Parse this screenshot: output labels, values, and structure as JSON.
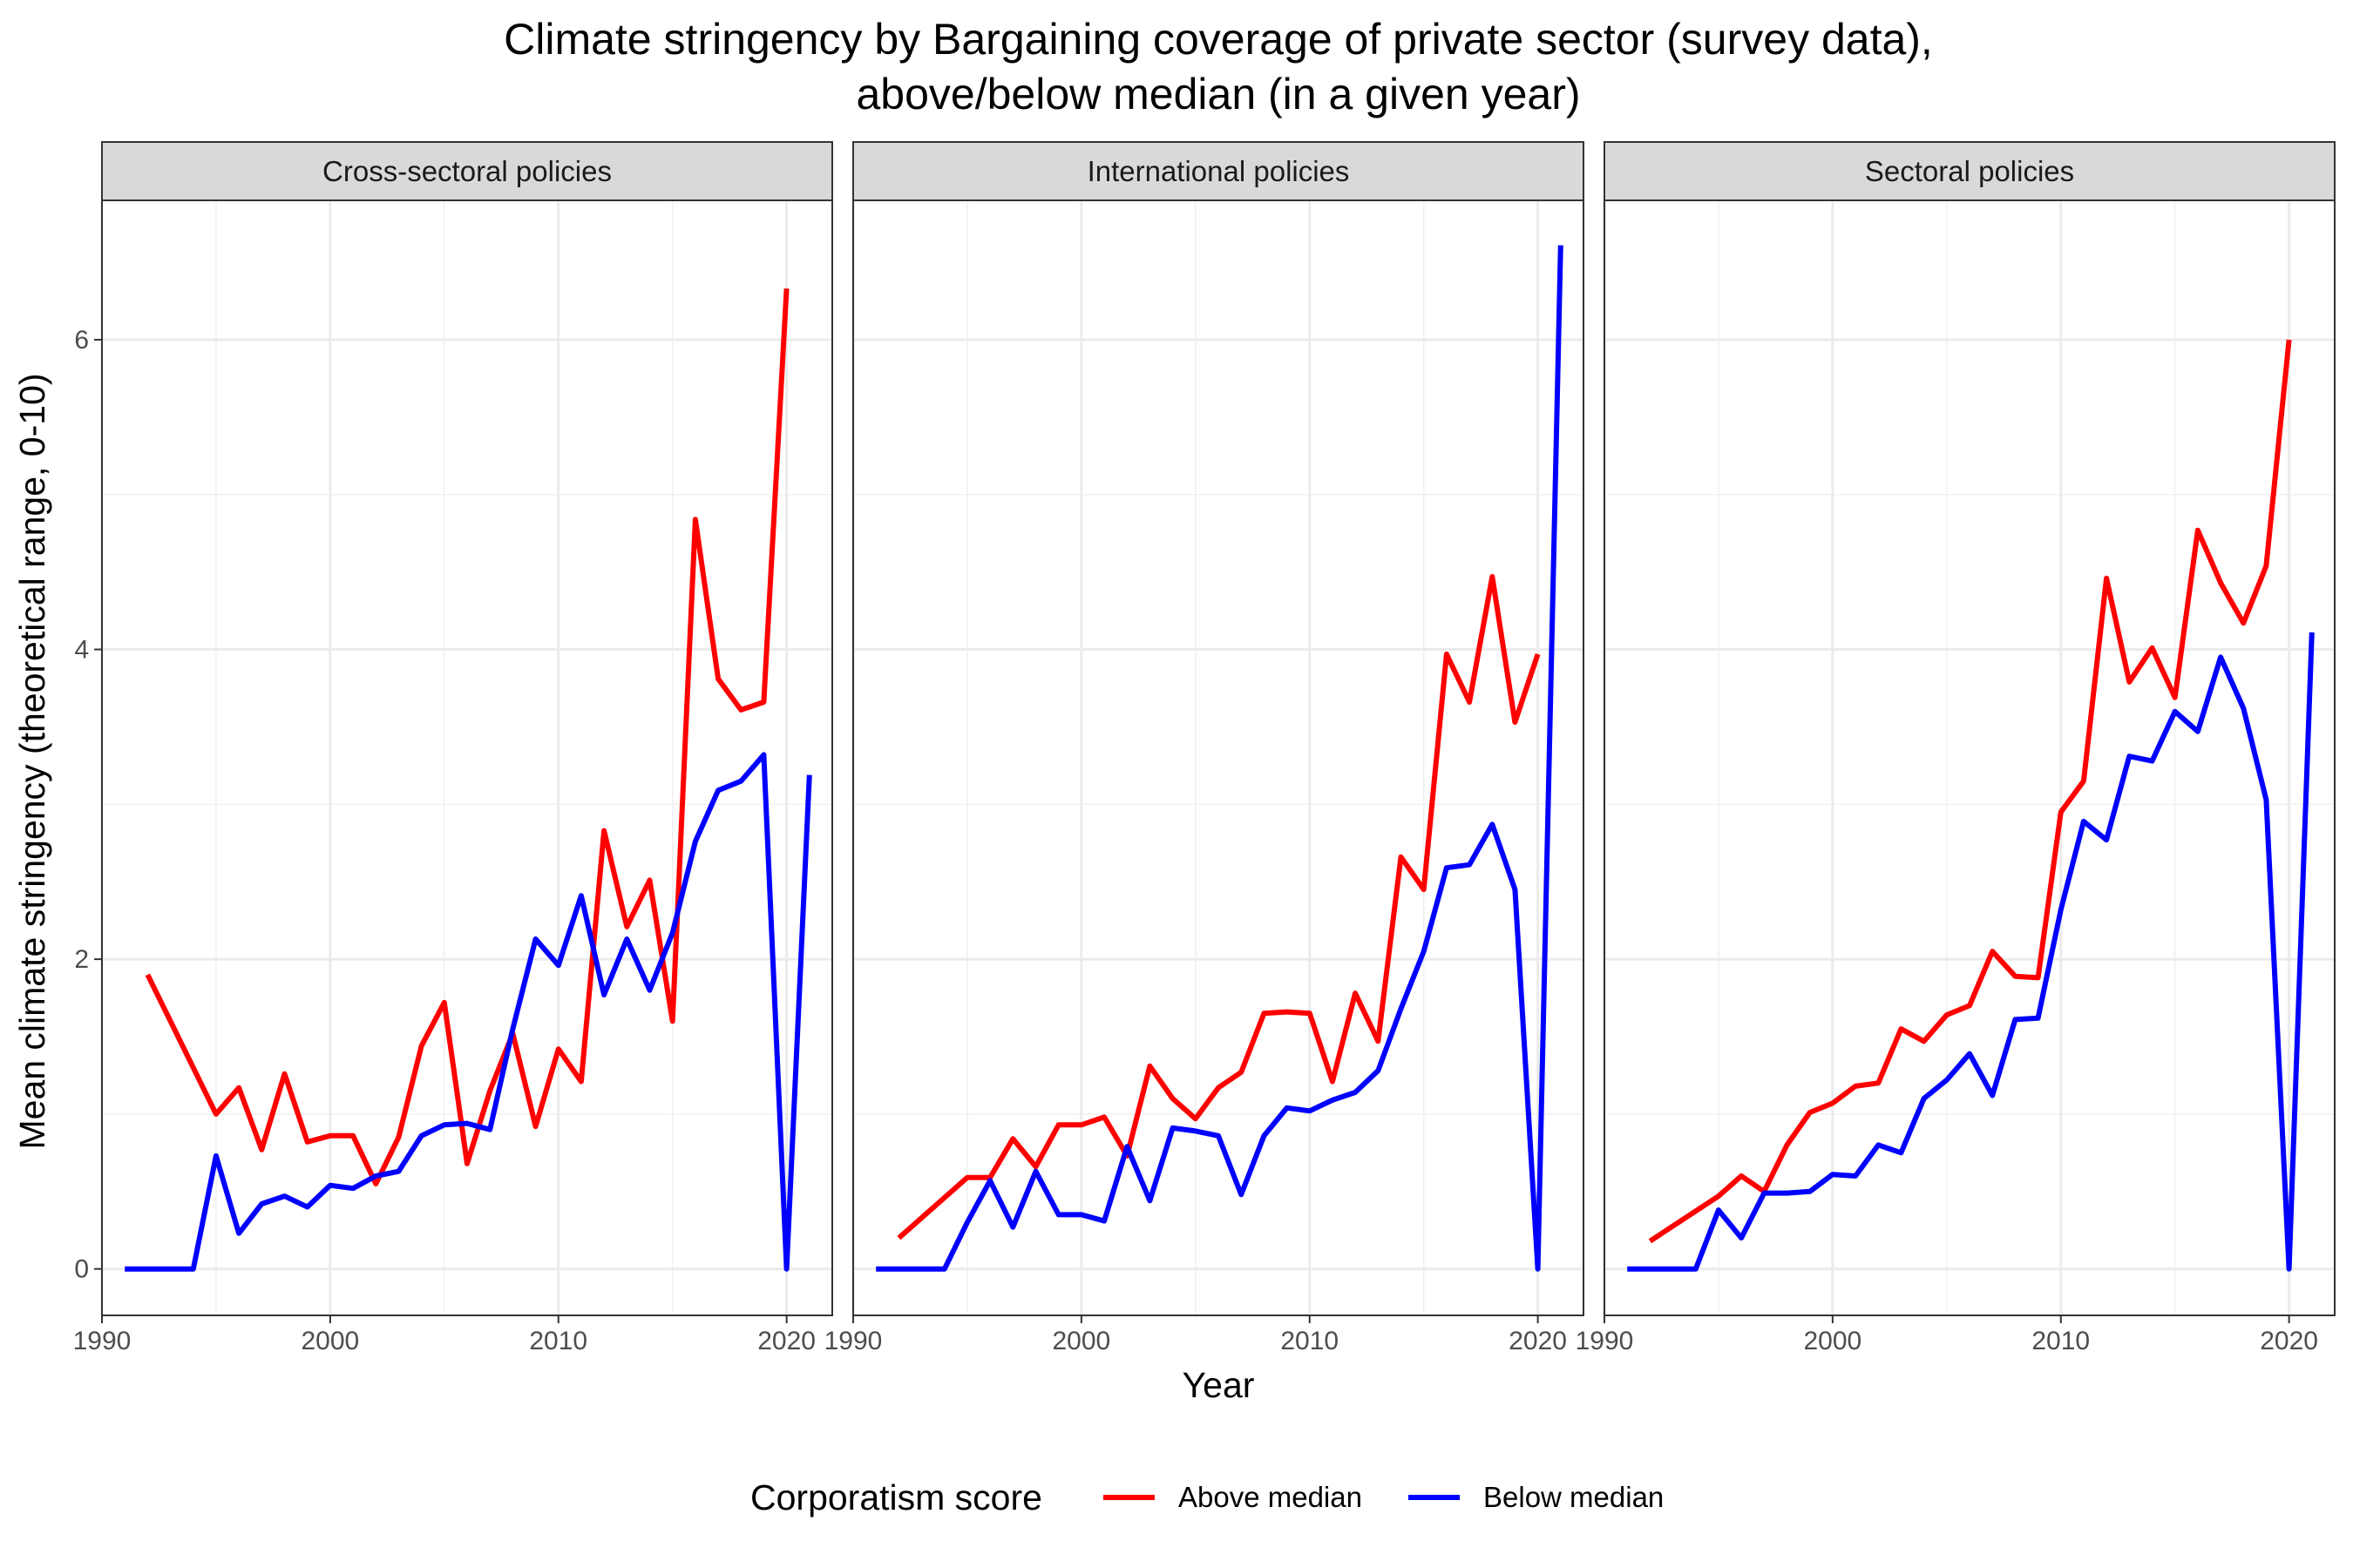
{
  "chart_data": {
    "type": "line",
    "title": "Climate stringency by Bargaining coverage of private sector (survey data),",
    "subtitle": "above/below median (in a given year)",
    "xlabel": "Year",
    "ylabel": "Mean climate stringency (theoretical range, 0-10)",
    "xlim": [
      1990,
      2022
    ],
    "ylim": [
      -0.3,
      6.9
    ],
    "x_ticks": [
      1990,
      2000,
      2010,
      2020
    ],
    "y_ticks": [
      0,
      2,
      4,
      6
    ],
    "grid": true,
    "legend": {
      "title": "Corporatism score",
      "position": "bottom",
      "entries": [
        "Above median",
        "Below median"
      ]
    },
    "colors": {
      "Above median": "#ff0000",
      "Below median": "#0000ff"
    },
    "panels": [
      {
        "name": "Cross-sectoral policies",
        "series": [
          {
            "name": "Above median",
            "x": [
              1992,
              1995,
              1996,
              1997,
              1998,
              1999,
              2000,
              2001,
              2002,
              2003,
              2004,
              2005,
              2006,
              2007,
              2008,
              2009,
              2010,
              2011,
              2012,
              2013,
              2014,
              2015,
              2016,
              2017,
              2018,
              2019,
              2020
            ],
            "values": [
              1.9,
              1.0,
              1.17,
              0.77,
              1.26,
              0.82,
              0.86,
              0.86,
              0.55,
              0.85,
              1.44,
              1.72,
              0.68,
              1.15,
              1.52,
              0.92,
              1.42,
              1.21,
              2.83,
              2.21,
              2.51,
              1.6,
              4.84,
              3.81,
              3.61,
              3.66,
              6.33
            ]
          },
          {
            "name": "Below median",
            "x": [
              1991,
              1992,
              1993,
              1994,
              1995,
              1996,
              1997,
              1998,
              1999,
              2000,
              2001,
              2002,
              2003,
              2004,
              2005,
              2006,
              2007,
              2008,
              2009,
              2010,
              2011,
              2012,
              2013,
              2014,
              2015,
              2016,
              2017,
              2018,
              2019,
              2020,
              2021
            ],
            "values": [
              0,
              0,
              0,
              0,
              0.73,
              0.23,
              0.42,
              0.47,
              0.4,
              0.54,
              0.52,
              0.6,
              0.63,
              0.86,
              0.93,
              0.94,
              0.9,
              1.55,
              2.13,
              1.96,
              2.41,
              1.77,
              2.13,
              1.8,
              2.17,
              2.76,
              3.09,
              3.15,
              3.32,
              0,
              3.19
            ]
          }
        ]
      },
      {
        "name": "International policies",
        "series": [
          {
            "name": "Above median",
            "x": [
              1992,
              1995,
              1996,
              1997,
              1998,
              1999,
              2000,
              2001,
              2002,
              2003,
              2004,
              2005,
              2006,
              2007,
              2008,
              2009,
              2010,
              2011,
              2012,
              2013,
              2014,
              2015,
              2016,
              2017,
              2018,
              2019,
              2020
            ],
            "values": [
              0.2,
              0.59,
              0.59,
              0.84,
              0.66,
              0.93,
              0.93,
              0.98,
              0.73,
              1.31,
              1.1,
              0.97,
              1.17,
              1.27,
              1.65,
              1.66,
              1.65,
              1.21,
              1.78,
              1.47,
              2.66,
              2.45,
              3.97,
              3.66,
              4.47,
              3.53,
              3.97
            ]
          },
          {
            "name": "Below median",
            "x": [
              1991,
              1992,
              1993,
              1994,
              1995,
              1996,
              1997,
              1998,
              1999,
              2000,
              2001,
              2002,
              2003,
              2004,
              2005,
              2006,
              2007,
              2008,
              2009,
              2010,
              2011,
              2012,
              2013,
              2014,
              2015,
              2016,
              2017,
              2018,
              2019,
              2020,
              2021
            ],
            "values": [
              0,
              0,
              0,
              0,
              0.3,
              0.57,
              0.27,
              0.63,
              0.35,
              0.35,
              0.31,
              0.79,
              0.44,
              0.91,
              0.89,
              0.86,
              0.48,
              0.86,
              1.04,
              1.02,
              1.09,
              1.14,
              1.28,
              1.68,
              2.05,
              2.59,
              2.61,
              2.87,
              2.45,
              0,
              6.61
            ]
          }
        ]
      },
      {
        "name": "Sectoral policies",
        "series": [
          {
            "name": "Above median",
            "x": [
              1992,
              1995,
              1996,
              1997,
              1998,
              1999,
              2000,
              2001,
              2002,
              2003,
              2004,
              2005,
              2006,
              2007,
              2008,
              2009,
              2010,
              2011,
              2012,
              2013,
              2014,
              2015,
              2016,
              2017,
              2018,
              2019,
              2020
            ],
            "values": [
              0.18,
              0.47,
              0.6,
              0.5,
              0.8,
              1.01,
              1.07,
              1.18,
              1.2,
              1.55,
              1.47,
              1.64,
              1.7,
              2.05,
              1.89,
              1.88,
              2.95,
              3.15,
              4.46,
              3.79,
              4.01,
              3.69,
              4.77,
              4.43,
              4.17,
              4.54,
              6.0
            ]
          },
          {
            "name": "Below median",
            "x": [
              1991,
              1992,
              1993,
              1994,
              1995,
              1996,
              1997,
              1998,
              1999,
              2000,
              2001,
              2002,
              2003,
              2004,
              2005,
              2006,
              2007,
              2008,
              2009,
              2010,
              2011,
              2012,
              2013,
              2014,
              2015,
              2016,
              2017,
              2018,
              2019,
              2020,
              2021
            ],
            "values": [
              0,
              0,
              0,
              0,
              0.38,
              0.2,
              0.49,
              0.49,
              0.5,
              0.61,
              0.6,
              0.8,
              0.75,
              1.1,
              1.22,
              1.39,
              1.12,
              1.61,
              1.62,
              2.32,
              2.89,
              2.77,
              3.31,
              3.28,
              3.6,
              3.47,
              3.95,
              3.62,
              3.03,
              0,
              4.11
            ]
          }
        ]
      }
    ]
  }
}
